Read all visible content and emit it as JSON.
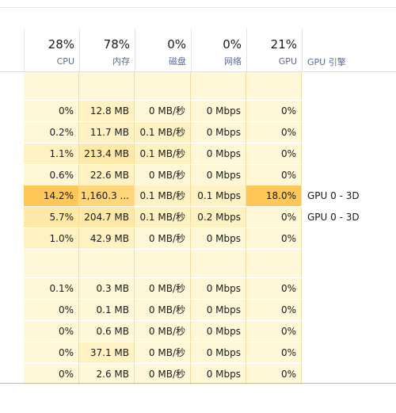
{
  "header": {
    "columns": [
      {
        "id": "cpu",
        "percent": "28%",
        "label": "CPU"
      },
      {
        "id": "mem",
        "percent": "78%",
        "label": "内存"
      },
      {
        "id": "disk",
        "percent": "0%",
        "label": "磁盘"
      },
      {
        "id": "net",
        "percent": "0%",
        "label": "网络"
      },
      {
        "id": "gpu",
        "percent": "21%",
        "label": "GPU"
      }
    ],
    "gpu_engine_label": "GPU 引擎"
  },
  "rows": [
    {
      "blank": true
    },
    {
      "cpu": "0%",
      "mem": "12.8 MB",
      "disk": "0 MB/秒",
      "net": "0 Mbps",
      "gpu": "0%",
      "engine": ""
    },
    {
      "cpu": "0.2%",
      "mem": "11.7 MB",
      "disk": "0.1 MB/秒",
      "net": "0 Mbps",
      "gpu": "0%",
      "engine": ""
    },
    {
      "cpu": "1.1%",
      "mem": "213.4 MB",
      "disk": "0.1 MB/秒",
      "net": "0 Mbps",
      "gpu": "0%",
      "engine": ""
    },
    {
      "cpu": "0.6%",
      "mem": "22.6 MB",
      "disk": "0 MB/秒",
      "net": "0 Mbps",
      "gpu": "0%",
      "engine": ""
    },
    {
      "cpu": "14.2%",
      "mem": "1,160.3 ...",
      "disk": "0.1 MB/秒",
      "net": "0.1 Mbps",
      "gpu": "18.0%",
      "engine": "GPU 0 - 3D"
    },
    {
      "cpu": "5.7%",
      "mem": "204.7 MB",
      "disk": "0.1 MB/秒",
      "net": "0.2 Mbps",
      "gpu": "0%",
      "engine": "GPU 0 - 3D"
    },
    {
      "cpu": "1.0%",
      "mem": "42.9 MB",
      "disk": "0 MB/秒",
      "net": "0 Mbps",
      "gpu": "0%",
      "engine": ""
    },
    {
      "blank": true
    },
    {
      "cpu": "0.1%",
      "mem": "0.3 MB",
      "disk": "0 MB/秒",
      "net": "0 Mbps",
      "gpu": "0%",
      "engine": ""
    },
    {
      "cpu": "0%",
      "mem": "0.1 MB",
      "disk": "0 MB/秒",
      "net": "0 Mbps",
      "gpu": "0%",
      "engine": ""
    },
    {
      "cpu": "0%",
      "mem": "0.6 MB",
      "disk": "0 MB/秒",
      "net": "0 Mbps",
      "gpu": "0%",
      "engine": ""
    },
    {
      "cpu": "0%",
      "mem": "37.1 MB",
      "disk": "0 MB/秒",
      "net": "0 Mbps",
      "gpu": "0%",
      "engine": ""
    },
    {
      "cpu": "0%",
      "mem": "2.6 MB",
      "disk": "0 MB/秒",
      "net": "0 Mbps",
      "gpu": "0%",
      "engine": ""
    }
  ]
}
